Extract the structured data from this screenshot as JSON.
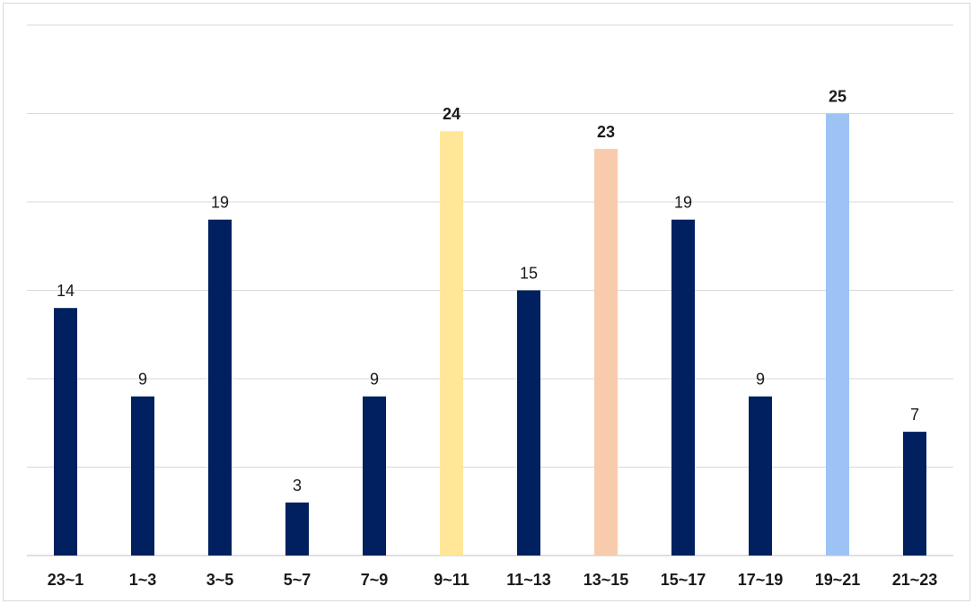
{
  "chart_data": {
    "type": "bar",
    "title": "",
    "xlabel": "",
    "ylabel": "",
    "ylim": [
      0,
      30
    ],
    "grid": true,
    "legend": "none",
    "categories": [
      "23~1",
      "1~3",
      "3~5",
      "5~7",
      "7~9",
      "9~11",
      "11~13",
      "13~15",
      "15~17",
      "17~19",
      "19~21",
      "21~23"
    ],
    "values": [
      14,
      9,
      19,
      3,
      9,
      24,
      15,
      23,
      19,
      9,
      25,
      7
    ],
    "bar_colors": [
      "#002060",
      "#002060",
      "#002060",
      "#002060",
      "#002060",
      "#ffe699",
      "#002060",
      "#f8cbad",
      "#002060",
      "#002060",
      "#9dc3f5",
      "#002060"
    ],
    "bold_labels": [
      false,
      false,
      false,
      false,
      false,
      true,
      false,
      true,
      false,
      false,
      true,
      false
    ]
  }
}
